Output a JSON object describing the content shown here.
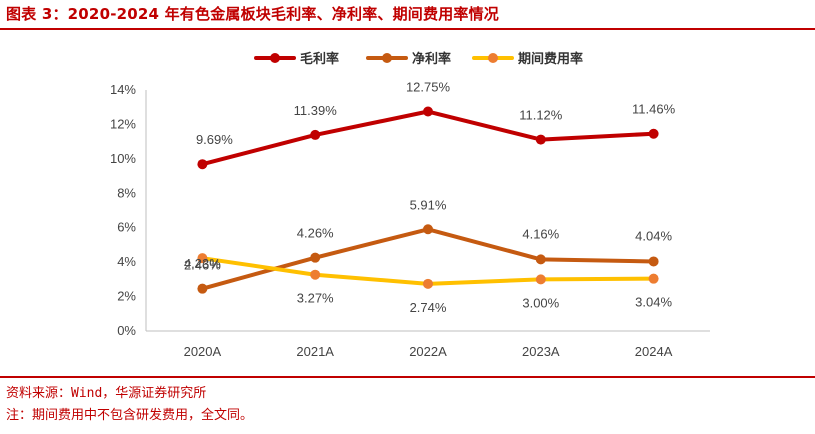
{
  "header": {
    "title": "图表 3：2020-2024 年有色金属板块毛利率、净利率、期间费用率情况"
  },
  "footer": {
    "source": "资料来源：Wind，华源证券研究所",
    "note": "注：期间费用中不包含研发费用，全文同。"
  },
  "colors": {
    "accent": "#c00000",
    "gross_margin": "#c00000",
    "net_margin": "#c55a11",
    "expense_ratio": "#ffc000",
    "expense_marker": "#ed7d31"
  },
  "chart_data": {
    "type": "line",
    "title": "",
    "xlabel": "",
    "ylabel": "",
    "categories": [
      "2020A",
      "2021A",
      "2022A",
      "2023A",
      "2024A"
    ],
    "ylim": [
      0,
      14
    ],
    "yticks": [
      "0%",
      "2%",
      "4%",
      "6%",
      "8%",
      "10%",
      "12%",
      "14%"
    ],
    "grid": false,
    "legend_position": "top-center",
    "series": [
      {
        "name": "毛利率",
        "values": [
          9.69,
          11.39,
          12.75,
          11.12,
          11.46
        ],
        "labels": [
          "9.69%",
          "11.39%",
          "12.75%",
          "11.12%",
          "11.46%"
        ]
      },
      {
        "name": "净利率",
        "values": [
          2.46,
          4.26,
          5.91,
          4.16,
          4.04
        ],
        "labels": [
          "2.46%",
          "4.26%",
          "5.91%",
          "4.16%",
          "4.04%"
        ]
      },
      {
        "name": "期间费用率",
        "values": [
          4.23,
          3.27,
          2.74,
          3.0,
          3.04
        ],
        "labels": [
          "4.23%",
          "3.27%",
          "2.74%",
          "3.00%",
          "3.04%"
        ]
      }
    ]
  }
}
